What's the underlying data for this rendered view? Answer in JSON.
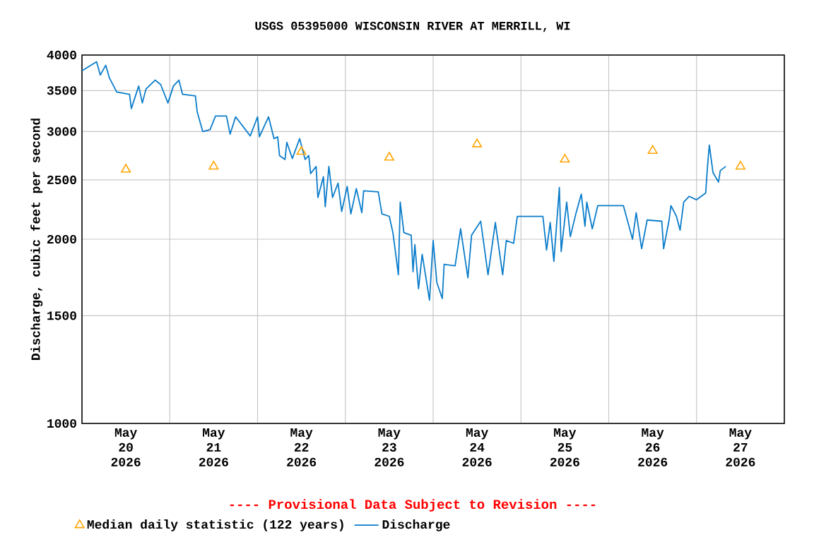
{
  "chart_data": {
    "type": "line",
    "title": "USGS 05395000 WISCONSIN RIVER AT MERRILL, WI",
    "ylabel": "Discharge, cubic feet per second",
    "annotations": [
      "---- Provisional Data Subject to Revision ----"
    ],
    "log": "y",
    "grid": true,
    "legend": "bottom",
    "xlim": [
      "2026-05-20T00:00",
      "2026-05-28T00:00"
    ],
    "xticks": [
      {
        "value": "2026-05-20T12:00",
        "label": "May 20 2026"
      },
      {
        "value": "2026-05-21T00:00",
        "label": null
      },
      {
        "value": "2026-05-21T12:00",
        "label": "May 21 2026"
      },
      {
        "value": "2026-05-22T00:00",
        "label": null
      },
      {
        "value": "2026-05-22T12:00",
        "label": "May 22 2026"
      },
      {
        "value": "2026-05-23T00:00",
        "label": null
      },
      {
        "value": "2026-05-23T12:00",
        "label": "May 23 2026"
      },
      {
        "value": "2026-05-24T00:00",
        "label": null
      },
      {
        "value": "2026-05-24T12:00",
        "label": "May 24 2026"
      },
      {
        "value": "2026-05-25T00:00",
        "label": null
      },
      {
        "value": "2026-05-25T12:00",
        "label": "May 25 2026"
      },
      {
        "value": "2026-05-26T00:00",
        "label": null
      },
      {
        "value": "2026-05-26T12:00",
        "label": "May 26 2026"
      },
      {
        "value": "2026-05-27T00:00",
        "label": null
      },
      {
        "value": "2026-05-27T12:00",
        "label": "May 27 2026"
      }
    ],
    "ylim": [
      1000,
      4000
    ],
    "yticks": [
      1000,
      1500,
      2000,
      2500,
      3000,
      3500,
      4000
    ],
    "series": [
      {
        "name": "Median daily statistic (122 years)",
        "type": "scatter",
        "marker": "triangle",
        "color": "#ffa500",
        "x": [
          "2026-05-20T12:00",
          "2026-05-21T12:00",
          "2026-05-22T12:00",
          "2026-05-23T12:00",
          "2026-05-24T12:00",
          "2026-05-25T12:00",
          "2026-05-26T12:00",
          "2026-05-27T12:00"
        ],
        "values": [
          2600,
          2630,
          2780,
          2720,
          2860,
          2700,
          2790,
          2630
        ]
      },
      {
        "name": "Discharge",
        "color": "#0b7dcb",
        "x": [
          "2026-05-20T00:00",
          "2026-05-20T04:00",
          "2026-05-20T05:00",
          "2026-05-20T06:30",
          "2026-05-20T07:30",
          "2026-05-20T09:30",
          "2026-05-20T13:00",
          "2026-05-20T13:30",
          "2026-05-20T15:30",
          "2026-05-20T16:30",
          "2026-05-20T17:30",
          "2026-05-20T20:00",
          "2026-05-20T21:30",
          "2026-05-20T23:30",
          "2026-05-21T01:00",
          "2026-05-21T02:30",
          "2026-05-21T03:30",
          "2026-05-21T07:00",
          "2026-05-21T07:30",
          "2026-05-21T09:00",
          "2026-05-21T11:00",
          "2026-05-21T12:30",
          "2026-05-21T15:30",
          "2026-05-21T16:30",
          "2026-05-21T18:00",
          "2026-05-21T22:00",
          "2026-05-22T00:00",
          "2026-05-22T00:30",
          "2026-05-22T03:00",
          "2026-05-22T04:30",
          "2026-05-22T05:30",
          "2026-05-22T06:00",
          "2026-05-22T07:30",
          "2026-05-22T08:00",
          "2026-05-22T09:30",
          "2026-05-22T11:30",
          "2026-05-22T13:00",
          "2026-05-22T14:00",
          "2026-05-22T14:30",
          "2026-05-22T16:00",
          "2026-05-22T16:30",
          "2026-05-22T18:00",
          "2026-05-22T18:30",
          "2026-05-22T19:30",
          "2026-05-22T20:30",
          "2026-05-22T22:00",
          "2026-05-22T23:00",
          "2026-05-23T00:30",
          "2026-05-23T01:30",
          "2026-05-23T03:00",
          "2026-05-23T04:30",
          "2026-05-23T05:00",
          "2026-05-23T09:00",
          "2026-05-23T10:00",
          "2026-05-23T12:00",
          "2026-05-23T13:00",
          "2026-05-23T14:30",
          "2026-05-23T15:00",
          "2026-05-23T16:00",
          "2026-05-23T18:00",
          "2026-05-23T18:30",
          "2026-05-23T19:00",
          "2026-05-23T20:00",
          "2026-05-23T21:00",
          "2026-05-23T23:00",
          "2026-05-24T00:00",
          "2026-05-24T01:00",
          "2026-05-24T02:30",
          "2026-05-24T03:00",
          "2026-05-24T06:00",
          "2026-05-24T07:30",
          "2026-05-24T09:30",
          "2026-05-24T10:30",
          "2026-05-24T13:00",
          "2026-05-24T15:00",
          "2026-05-24T17:00",
          "2026-05-24T19:00",
          "2026-05-24T20:00",
          "2026-05-24T22:00",
          "2026-05-24T23:00",
          "2026-05-25T06:00",
          "2026-05-25T07:00",
          "2026-05-25T08:00",
          "2026-05-25T09:00",
          "2026-05-25T10:30",
          "2026-05-25T11:00",
          "2026-05-25T12:30",
          "2026-05-25T13:30",
          "2026-05-25T15:00",
          "2026-05-25T16:30",
          "2026-05-25T17:30",
          "2026-05-25T18:00",
          "2026-05-25T19:30",
          "2026-05-25T21:00",
          "2026-05-26T04:00",
          "2026-05-26T06:30",
          "2026-05-26T07:30",
          "2026-05-26T09:00",
          "2026-05-26T10:30",
          "2026-05-26T14:30",
          "2026-05-26T15:00",
          "2026-05-26T16:30",
          "2026-05-26T17:00",
          "2026-05-26T18:30",
          "2026-05-26T19:30",
          "2026-05-26T20:30",
          "2026-05-26T22:00",
          "2026-05-27T00:00",
          "2026-05-27T02:30",
          "2026-05-27T03:00",
          "2026-05-27T03:30",
          "2026-05-27T04:30",
          "2026-05-27T06:00",
          "2026-05-27T06:30",
          "2026-05-27T08:00"
        ],
        "values": [
          3770,
          3900,
          3710,
          3850,
          3670,
          3480,
          3450,
          3270,
          3560,
          3340,
          3520,
          3640,
          3580,
          3340,
          3560,
          3640,
          3450,
          3430,
          3230,
          3000,
          3020,
          3180,
          3180,
          2970,
          3170,
          2950,
          3170,
          2940,
          3170,
          2920,
          2940,
          2740,
          2700,
          2880,
          2710,
          2920,
          2700,
          2740,
          2560,
          2630,
          2340,
          2530,
          2260,
          2630,
          2340,
          2470,
          2220,
          2440,
          2200,
          2420,
          2210,
          2400,
          2390,
          2200,
          2180,
          2050,
          1750,
          2300,
          2050,
          2030,
          1770,
          1960,
          1660,
          1890,
          1590,
          1990,
          1700,
          1600,
          1820,
          1810,
          2080,
          1730,
          2030,
          2140,
          1750,
          2130,
          1750,
          1990,
          1970,
          2180,
          2180,
          1920,
          2130,
          1840,
          2430,
          1910,
          2300,
          2020,
          2200,
          2370,
          2100,
          2300,
          2080,
          2270,
          2270,
          2000,
          2210,
          1930,
          2150,
          2140,
          1930,
          2150,
          2270,
          2180,
          2070,
          2300,
          2350,
          2320,
          2380,
          2630,
          2850,
          2570,
          2480,
          2590,
          2630
        ]
      }
    ]
  }
}
